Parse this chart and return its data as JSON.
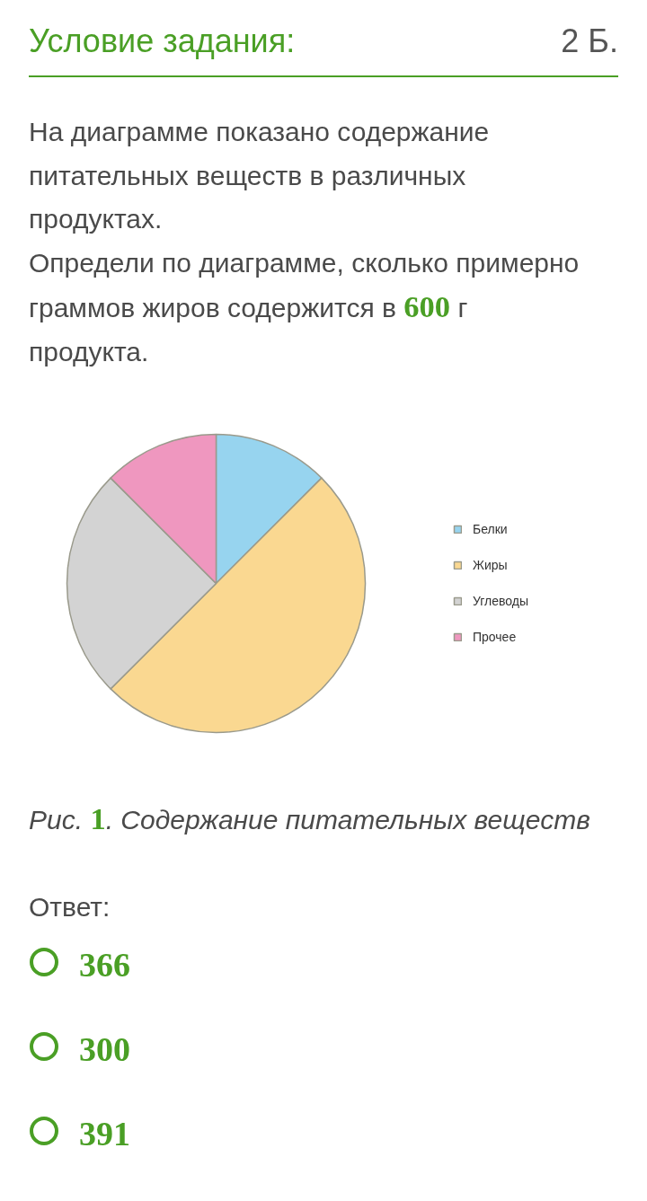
{
  "chart_data": {
    "type": "pie",
    "title": "Условие задания:",
    "categories": [
      "Белки",
      "Жиры",
      "Углеводы",
      "Прочее"
    ],
    "values": [
      12.5,
      50,
      25,
      12.5
    ],
    "colors": [
      "#97d4ef",
      "#fad891",
      "#d3d3d3",
      "#ef97bf"
    ],
    "legend": "right",
    "annotations": [
      "2 Б.",
      "На диаграмме показано содержание питательных веществ в различных продуктах.",
      "Определи по диаграмме, сколько примерно граммов жиров содержится в 600 г продукта.",
      "Рис. 1. Содержание питательных веществ",
      "Ответ:",
      "366",
      "300",
      "391"
    ]
  }
}
